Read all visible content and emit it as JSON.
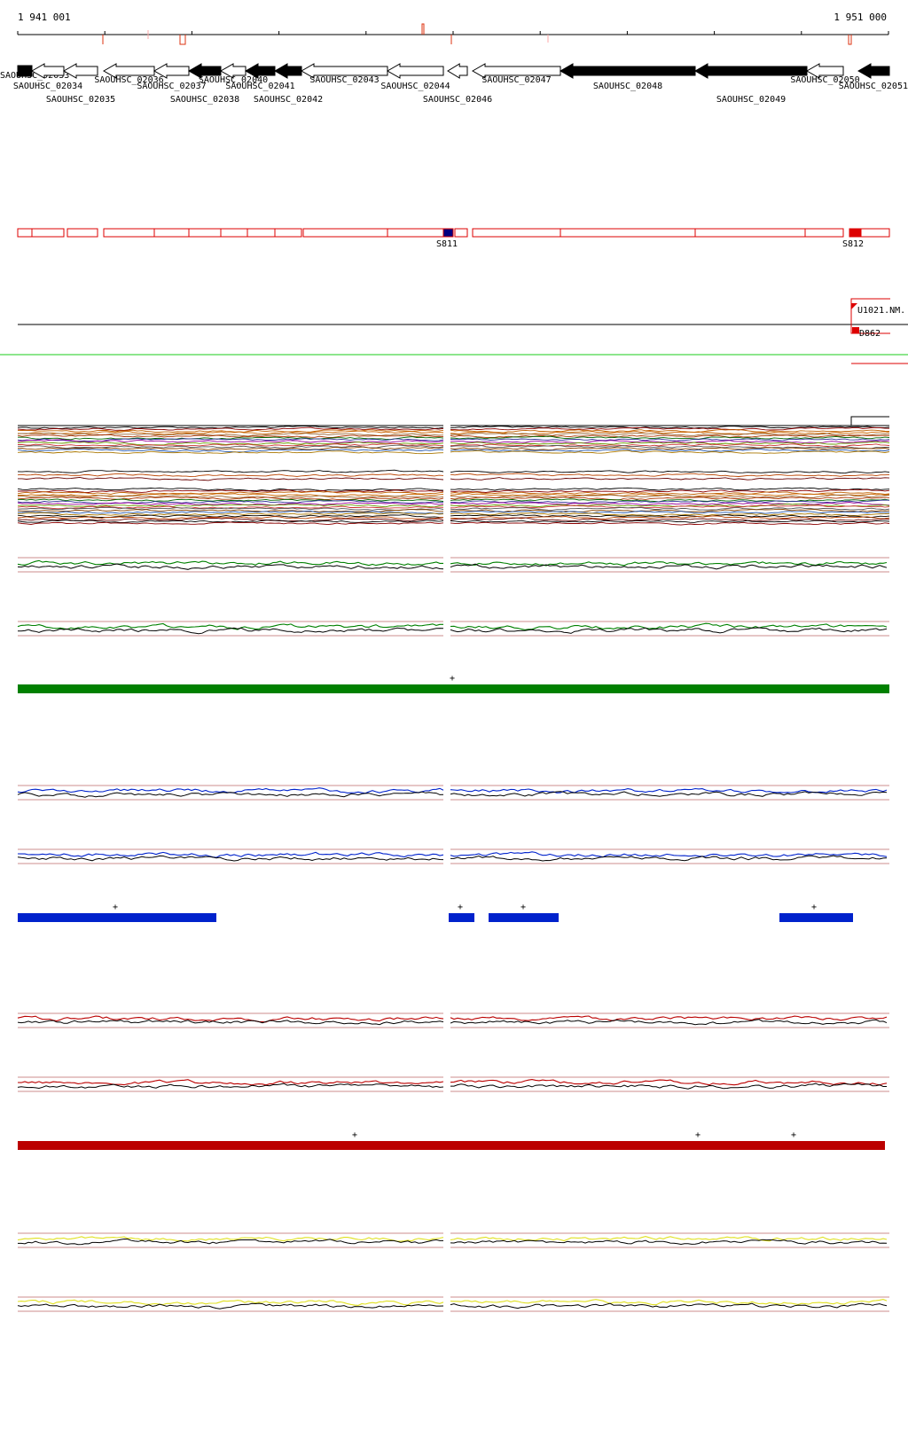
{
  "ruler": {
    "start_label": "1 941 001",
    "end_label": "1 951 000"
  },
  "colors": {
    "green": "#008000",
    "blue": "#0022cc",
    "red": "#bb0000",
    "yellow": "#e0e020",
    "gene_fill": "#000000",
    "feature_red": "#dd0000",
    "sep_green": "#66dd66"
  },
  "genes": [
    {
      "label": "SAOUHSC_02033",
      "fill": "black",
      "dir": "right"
    },
    {
      "label": "SAOUHSC_02034",
      "fill": "white",
      "dir": "left"
    },
    {
      "label": "SAOUHSC_02035",
      "fill": "white",
      "dir": "left"
    },
    {
      "label": "SAOUHSC_02036",
      "fill": "white",
      "dir": "left"
    },
    {
      "label": "SAOUHSC_02037",
      "fill": "white",
      "dir": "left"
    },
    {
      "label": "SAOUHSC_02038",
      "fill": "black",
      "dir": "left"
    },
    {
      "label": "SAOUHSC_02040",
      "fill": "white",
      "dir": "left"
    },
    {
      "label": "SAOUHSC_02041",
      "fill": "black",
      "dir": "left"
    },
    {
      "label": "SAOUHSC_02042",
      "fill": "black",
      "dir": "left"
    },
    {
      "label": "SAOUHSC_02043",
      "fill": "white",
      "dir": "left"
    },
    {
      "label": "SAOUHSC_02044",
      "fill": "white",
      "dir": "left"
    },
    {
      "label": "SAOUHSC_02046",
      "fill": "white",
      "dir": "left"
    },
    {
      "label": "SAOUHSC_02047",
      "fill": "white",
      "dir": "left"
    },
    {
      "label": "SAOUHSC_02048",
      "fill": "black",
      "dir": "left"
    },
    {
      "label": "SAOUHSC_02049",
      "fill": "black",
      "dir": "left"
    },
    {
      "label": "SAOUHSC_02050",
      "fill": "white",
      "dir": "left"
    },
    {
      "label": "SAOUHSC_02051",
      "fill": "black",
      "dir": "left"
    }
  ],
  "segment_labels": {
    "s811": "S811",
    "s812": "S812"
  },
  "feature_labels": {
    "u1021": "U1021.NM.",
    "d862": "D862"
  },
  "panels": [
    {
      "name": "green",
      "plus_count": 1
    },
    {
      "name": "blue",
      "plus_count": 4
    },
    {
      "name": "red",
      "plus_count": 3
    },
    {
      "name": "yellow",
      "plus_count": 0
    }
  ]
}
